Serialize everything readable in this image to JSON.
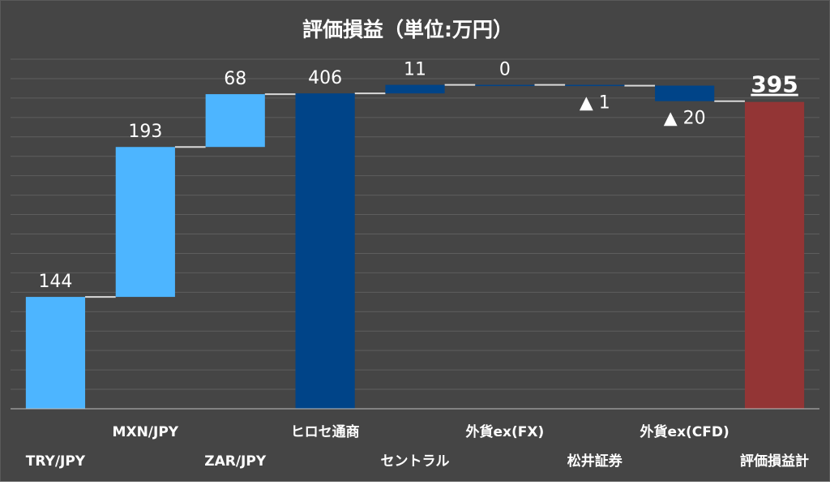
{
  "chart_data": {
    "type": "bar",
    "subtype": "waterfall",
    "title": "評価損益（単位:万円）",
    "xlabel": "",
    "ylabel": "",
    "ylim": [
      0,
      450
    ],
    "grid": true,
    "legend": "none",
    "categories": [
      "TRY/JPY",
      "MXN/JPY",
      "ZAR/JPY",
      "ヒロセ通商",
      "セントラル",
      "外貨ex(FX)",
      "松井証券",
      "外貨ex(CFD)",
      "評価損益計"
    ],
    "kinds": [
      "delta",
      "delta",
      "delta",
      "subtotal",
      "delta",
      "delta",
      "delta",
      "delta",
      "total"
    ],
    "values": [
      144,
      193,
      68,
      406,
      11,
      0,
      -1,
      -20,
      395
    ],
    "value_labels": [
      "144",
      "193",
      "68",
      "406",
      "11",
      "0",
      "▲ 1",
      "▲ 20",
      "395"
    ],
    "colors": {
      "fx_pair": "#4db5ff",
      "broker": "#004488",
      "total": "#933535",
      "background": "#454545",
      "text": "#ffffff",
      "grid": "#5e5e5e",
      "connector": "#d9d9d9"
    },
    "bar_colors": [
      "#4db5ff",
      "#4db5ff",
      "#4db5ff",
      "#004488",
      "#004488",
      "#004488",
      "#004488",
      "#004488",
      "#933535"
    ]
  }
}
